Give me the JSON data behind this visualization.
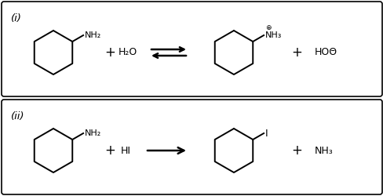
{
  "background_color": "#ffffff",
  "border_color": "#000000",
  "text_color": "#000000",
  "fig_width": 4.89,
  "fig_height": 2.5,
  "dpi": 100,
  "panel_i_label": "(i)",
  "panel_ii_label": "(ii)",
  "reaction_i": {
    "reagent1_sub": "NH₂",
    "reagent2": "H₂O",
    "arrow": "equilibrium",
    "product1_sub_main": "NH₃",
    "product1_sub_charge": "⊕",
    "product2": "HOΘ"
  },
  "reaction_ii": {
    "reagent1_sub": "NH₂",
    "reagent2": "HI",
    "arrow": "forward",
    "product1_sub": "I",
    "product2": "NH₃"
  }
}
